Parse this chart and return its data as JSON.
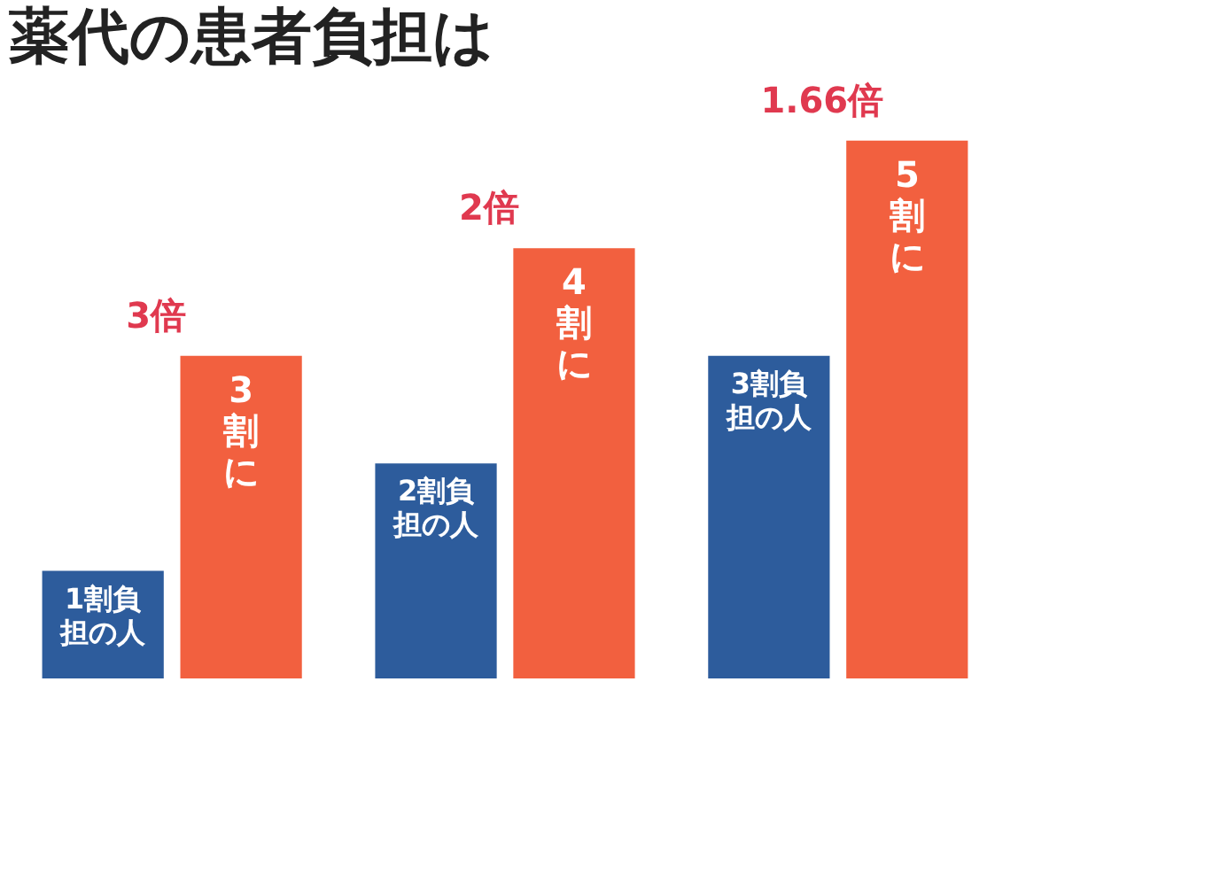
{
  "chart_data": {
    "type": "bar",
    "title": "薬代の患者負担は",
    "categories": [
      null,
      null,
      null
    ],
    "series": [
      {
        "color": "#2d5c9c",
        "values": [
          1,
          2,
          3
        ],
        "value_labels": [
          "1割負担の人",
          "2割負担の人",
          "3割負担の人"
        ]
      },
      {
        "color": "#f2603f",
        "values": [
          3,
          4,
          5
        ],
        "value_labels": [
          "3割に",
          "4割に",
          "5割に"
        ]
      }
    ],
    "annotations": [
      "3倍",
      "2倍",
      "1.66倍"
    ],
    "legend": false,
    "grid": false
  }
}
